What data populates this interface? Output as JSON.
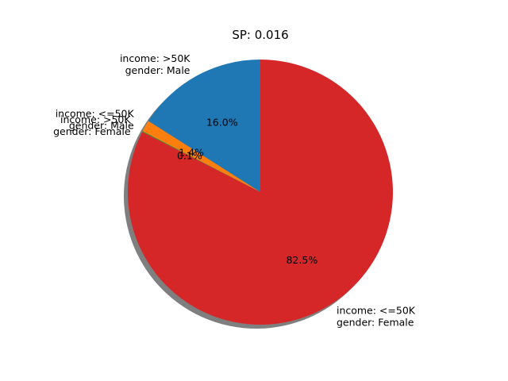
{
  "chart_data": {
    "type": "pie",
    "title": "SP: 0.016",
    "shadow": true,
    "start_angle_deg": 90,
    "direction": "counterclockwise",
    "slices": [
      {
        "label_lines": [
          "income: >50K",
          "gender: Male"
        ],
        "value": 16.0,
        "pct_label": "16.0%",
        "color": "#1f77b4"
      },
      {
        "label_lines": [
          "income: <=50K",
          "gender: Male"
        ],
        "value": 1.4,
        "pct_label": "1.4%",
        "color": "#ff7f0e"
      },
      {
        "label_lines": [
          "income: >50K",
          "gender: Female"
        ],
        "value": 0.1,
        "pct_label": "0.1%",
        "color": "#2ca02c"
      },
      {
        "label_lines": [
          "income: <=50K",
          "gender: Female"
        ],
        "value": 82.5,
        "pct_label": "82.5%",
        "color": "#d62728"
      }
    ]
  }
}
